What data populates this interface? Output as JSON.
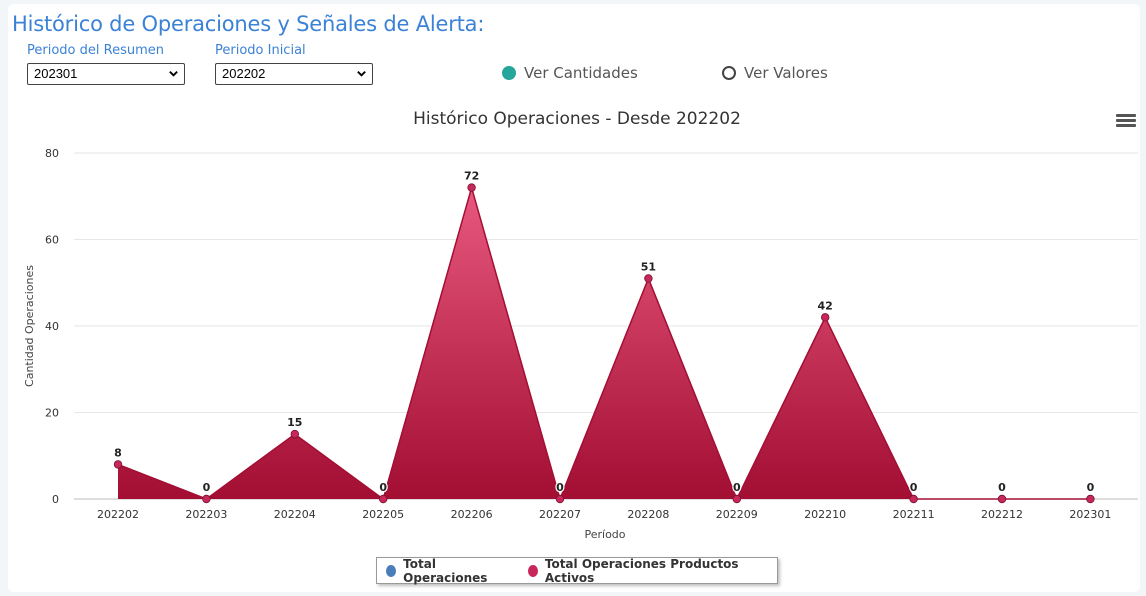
{
  "header": {
    "title": "Histórico de Operaciones y Señales de Alerta:"
  },
  "filters": {
    "summary_period": {
      "label": "Periodo del Resumen",
      "value": "202301"
    },
    "initial_period": {
      "label": "Periodo Inicial",
      "value": "202202"
    }
  },
  "view_options": {
    "quantities": {
      "label": "Ver Cantidades",
      "selected": true
    },
    "values": {
      "label": "Ver Valores",
      "selected": false
    }
  },
  "colors": {
    "accent": "#3b82d6",
    "radio_selected": "#26a69a",
    "series_1": "#4a7ebb",
    "series_2": "#c7285b"
  },
  "chart_data": {
    "type": "area",
    "title": "Histórico Operaciones - Desde 202202",
    "xlabel": "Período",
    "ylabel": "Cantidad Operaciones",
    "ylim": [
      0,
      80
    ],
    "yticks": [
      0,
      20,
      40,
      60,
      80
    ],
    "grid": true,
    "legend_position": "bottom-center",
    "categories": [
      "202202",
      "202203",
      "202204",
      "202205",
      "202206",
      "202207",
      "202208",
      "202209",
      "202210",
      "202211",
      "202212",
      "202301"
    ],
    "series": [
      {
        "name": "Total Operaciones",
        "values": [
          8,
          0,
          15,
          0,
          72,
          0,
          51,
          0,
          42,
          0,
          0,
          0
        ]
      },
      {
        "name": "Total Operaciones Productos Activos",
        "values": [
          8,
          0,
          15,
          0,
          72,
          0,
          51,
          0,
          42,
          0,
          0,
          0
        ]
      }
    ],
    "data_labels": [
      "8",
      "0",
      "15",
      "0",
      "72",
      "0",
      "51",
      "0",
      "42",
      "0",
      "0",
      "0"
    ]
  }
}
